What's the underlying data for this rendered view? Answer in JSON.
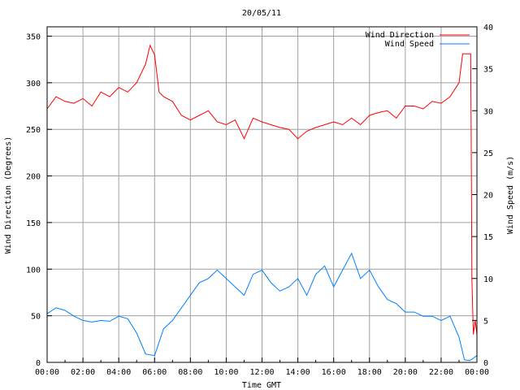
{
  "chart_data": {
    "type": "line",
    "title": "20/05/11",
    "xlabel": "Time GMT",
    "ylabel": "Wind Direction (Degrees)",
    "y2label": "Wind Speed (m/s)",
    "xlim_hours": [
      0,
      24
    ],
    "ylim": [
      0,
      360
    ],
    "y2lim": [
      0,
      40
    ],
    "grid": true,
    "legend_position": "top-right",
    "x_ticks": [
      "00:00",
      "02:00",
      "04:00",
      "06:00",
      "08:00",
      "10:00",
      "12:00",
      "14:00",
      "16:00",
      "18:00",
      "20:00",
      "22:00",
      "00:00"
    ],
    "y_ticks": [
      0,
      50,
      100,
      150,
      200,
      250,
      300,
      350
    ],
    "y2_ticks": [
      0,
      5,
      10,
      15,
      20,
      25,
      30,
      35,
      40
    ],
    "series": [
      {
        "name": "Wind Direction",
        "axis": "left",
        "color": "#ff0000",
        "x_hours": [
          0,
          0.5,
          1,
          1.5,
          2,
          2.5,
          3,
          3.5,
          4,
          4.5,
          5,
          5.5,
          5.75,
          6,
          6.25,
          6.5,
          7,
          7.5,
          8,
          8.5,
          9,
          9.5,
          10,
          10.5,
          11,
          11.5,
          12,
          12.5,
          13,
          13.5,
          14,
          14.5,
          15,
          15.5,
          16,
          16.5,
          17,
          17.5,
          18,
          18.5,
          19,
          19.5,
          20,
          20.5,
          21,
          21.5,
          22,
          22.5,
          23,
          23.2,
          23.65,
          23.68,
          23.72,
          23.8,
          23.9,
          24
        ],
        "values": [
          272,
          285,
          280,
          278,
          283,
          275,
          290,
          285,
          295,
          290,
          300,
          320,
          340,
          330,
          290,
          285,
          280,
          265,
          260,
          265,
          270,
          258,
          255,
          260,
          240,
          262,
          258,
          255,
          252,
          250,
          240,
          248,
          252,
          255,
          258,
          255,
          262,
          255,
          265,
          268,
          270,
          262,
          275,
          275,
          272,
          280,
          278,
          285,
          300,
          331,
          331,
          250,
          90,
          30,
          45,
          30
        ]
      },
      {
        "name": "Wind Speed",
        "axis": "right",
        "color": "#0080ff",
        "x_hours": [
          0,
          0.5,
          1,
          1.5,
          2,
          2.5,
          3,
          3.5,
          4,
          4.5,
          5,
          5.5,
          6,
          6.5,
          7,
          7.5,
          8,
          8.5,
          9,
          9.5,
          10,
          10.5,
          11,
          11.5,
          12,
          12.5,
          13,
          13.5,
          14,
          14.5,
          15,
          15.5,
          16,
          16.5,
          17,
          17.5,
          18,
          18.5,
          19,
          19.5,
          20,
          20.5,
          21,
          21.5,
          22,
          22.5,
          23,
          23.3,
          23.6,
          24
        ],
        "values": [
          5.8,
          6.5,
          6.2,
          5.5,
          5.0,
          4.8,
          5.0,
          4.9,
          5.5,
          5.2,
          3.5,
          1.0,
          0.8,
          4.0,
          5.0,
          6.5,
          8.0,
          9.5,
          10.0,
          11.0,
          10.0,
          9.0,
          8.0,
          10.5,
          11.0,
          9.5,
          8.5,
          9.0,
          10.0,
          8.0,
          10.5,
          11.5,
          9.0,
          11.0,
          13.0,
          10.0,
          11.0,
          9.0,
          7.5,
          7.0,
          6.0,
          6.0,
          5.5,
          5.5,
          5.0,
          5.5,
          3.0,
          0.3,
          0.2,
          0.8
        ]
      }
    ]
  }
}
